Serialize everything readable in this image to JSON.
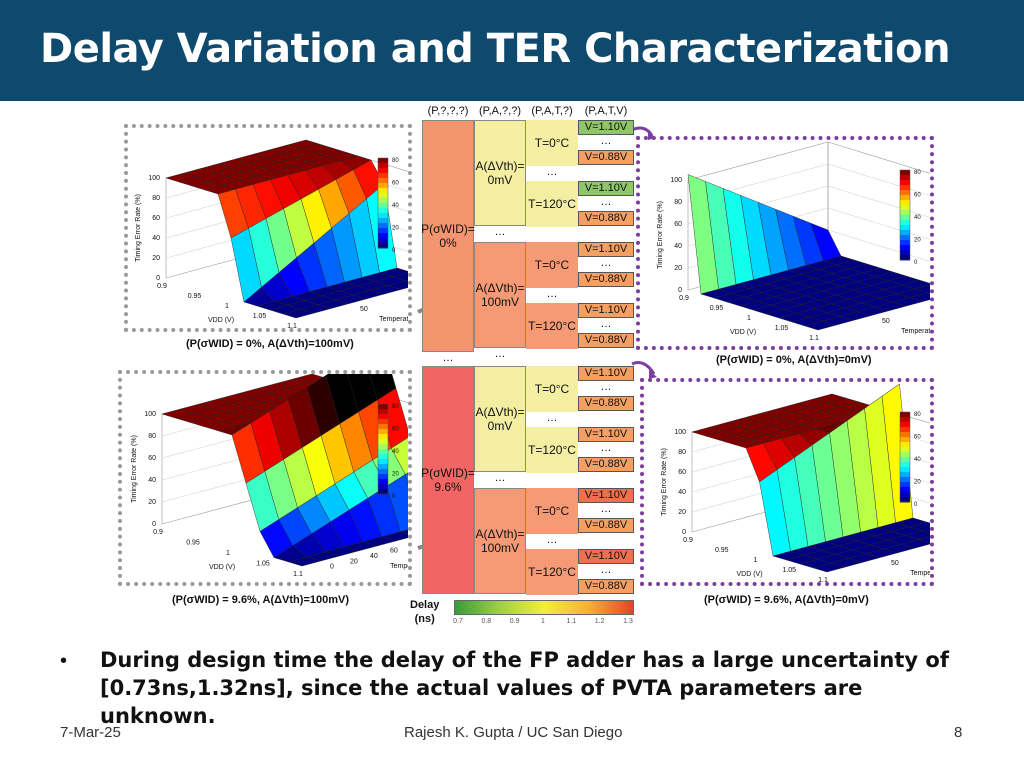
{
  "slide": {
    "title": "Delay Variation and TER Characterization",
    "bullet": "During design time the delay of the FP adder has a large uncertainty of [0.73ns,1.32ns], since the actual values of PVTA parameters are unknown.",
    "footer_date": "7-Mar-25",
    "footer_author": "Rajesh K. Gupta / UC San Diego",
    "page_number": "8"
  },
  "tree": {
    "headers": [
      "(P,?,?,?)",
      "(P,A,?,?)",
      "(P,A,T,?)",
      "(P,A,T,V)"
    ],
    "p_labels": [
      "P(σWID)=\n0%",
      "P(σWID)=\n9.6%"
    ],
    "a_labels": [
      "A(ΔVth)=\n0mV",
      "A(ΔVth)=\n100mV"
    ],
    "t_labels": [
      "T=0°C",
      "T=120°C"
    ],
    "v_top": "V=1.10V",
    "v_bottom": "V=0.88V",
    "ellipsis": "…",
    "colors": {
      "p0": "#f4956f",
      "p96": "#f26565",
      "a_top": "#f3eea2",
      "a_bottom": "#f59a74",
      "v_green": "#8fc66a",
      "v_orange": "#f5a062",
      "v_red": "#ee7050"
    },
    "delay_label": "Delay\n(ns)",
    "colorbar_ticks": [
      "0.7",
      "0.8",
      "0.9",
      "1",
      "1.1",
      "1.2",
      "1.3"
    ]
  },
  "plots": [
    {
      "caption": "(P(σWID) = 0%, A(ΔVth)=100mV)",
      "zlabel": "Timing Error Rate (%)",
      "xlabel": "VDD (V)",
      "ylabel": "Temperature (°C)",
      "z_ticks": [
        "0",
        "20",
        "40",
        "60",
        "80",
        "100"
      ],
      "x_ticks": [
        "0.9",
        "0.95",
        "1",
        "1.05",
        "1.1"
      ],
      "y_ticks": [
        "50",
        "100"
      ],
      "cbar_ticks": [
        "80",
        "60",
        "40",
        "20",
        "0"
      ]
    },
    {
      "caption": "(P(σWID) = 0%, A(ΔVth)=0mV)",
      "zlabel": "Timing Error Rate (%)",
      "xlabel": "VDD (V)",
      "ylabel": "Temperature (°C)",
      "z_ticks": [
        "0",
        "20",
        "40",
        "60",
        "80",
        "100"
      ],
      "x_ticks": [
        "0.9",
        "0.95",
        "1",
        "1.05",
        "1.1"
      ],
      "y_ticks": [
        "50",
        "100"
      ],
      "cbar_ticks": [
        "80",
        "60",
        "40",
        "20",
        "0"
      ]
    },
    {
      "caption": "(P(σWID) = 9.6%, A(ΔVth)=100mV)",
      "zlabel": "Timing Error Rate (%)",
      "xlabel": "VDD (V)",
      "ylabel": "Temperature (°C)",
      "z_ticks": [
        "0",
        "20",
        "40",
        "60",
        "80",
        "100"
      ],
      "x_ticks": [
        "0.9",
        "0.95",
        "1",
        "1.05",
        "1.1"
      ],
      "y_ticks": [
        "0",
        "20",
        "40",
        "60",
        "80",
        "100",
        "120"
      ],
      "cbar_ticks": [
        "80",
        "60",
        "40",
        "20",
        "0"
      ]
    },
    {
      "caption": "(P(σWID) = 9.6%, A(ΔVth)=0mV)",
      "zlabel": "Timing Error Rate (%)",
      "xlabel": "VDD (V)",
      "ylabel": "Temperature (°C)",
      "z_ticks": [
        "0",
        "20",
        "40",
        "60",
        "80",
        "100"
      ],
      "x_ticks": [
        "0.9",
        "0.95",
        "1",
        "1.05",
        "1.1"
      ],
      "y_ticks": [
        "50",
        "100"
      ],
      "cbar_ticks": [
        "80",
        "60",
        "40",
        "20",
        "0"
      ]
    }
  ]
}
